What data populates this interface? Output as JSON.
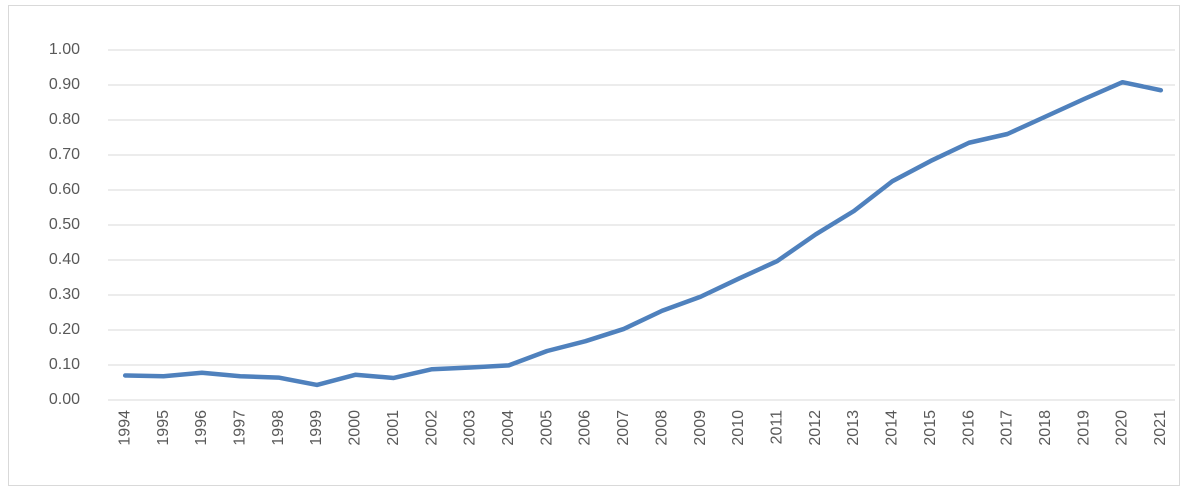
{
  "chart_data": {
    "type": "line",
    "categories": [
      "1994",
      "1995",
      "1996",
      "1997",
      "1998",
      "1999",
      "2000",
      "2001",
      "2002",
      "2003",
      "2004",
      "2005",
      "2006",
      "2007",
      "2008",
      "2009",
      "2010",
      "2011",
      "2012",
      "2013",
      "2014",
      "2015",
      "2016",
      "2017",
      "2018",
      "2019",
      "2020",
      "2021"
    ],
    "values": [
      0.07,
      0.068,
      0.078,
      0.068,
      0.064,
      0.043,
      0.072,
      0.063,
      0.088,
      0.093,
      0.099,
      0.14,
      0.168,
      0.203,
      0.255,
      0.295,
      0.347,
      0.397,
      0.473,
      0.54,
      0.625,
      0.683,
      0.735,
      0.76,
      0.81,
      0.86,
      0.908,
      0.885
    ],
    "color": "#4f81bd",
    "ylim": [
      0,
      1
    ],
    "yticks": [
      {
        "value": 0,
        "label": "0.00"
      },
      {
        "value": 0.1,
        "label": "0.10"
      },
      {
        "value": 0.2,
        "label": "0.20"
      },
      {
        "value": 0.3,
        "label": "0.30"
      },
      {
        "value": 0.4,
        "label": "0.40"
      },
      {
        "value": 0.5,
        "label": "0.50"
      },
      {
        "value": 0.6,
        "label": "0.60"
      },
      {
        "value": 0.7,
        "label": "0.70"
      },
      {
        "value": 0.8,
        "label": "0.80"
      },
      {
        "value": 0.9,
        "label": "0.90"
      },
      {
        "value": 1,
        "label": "1.00"
      }
    ],
    "grid": true
  }
}
